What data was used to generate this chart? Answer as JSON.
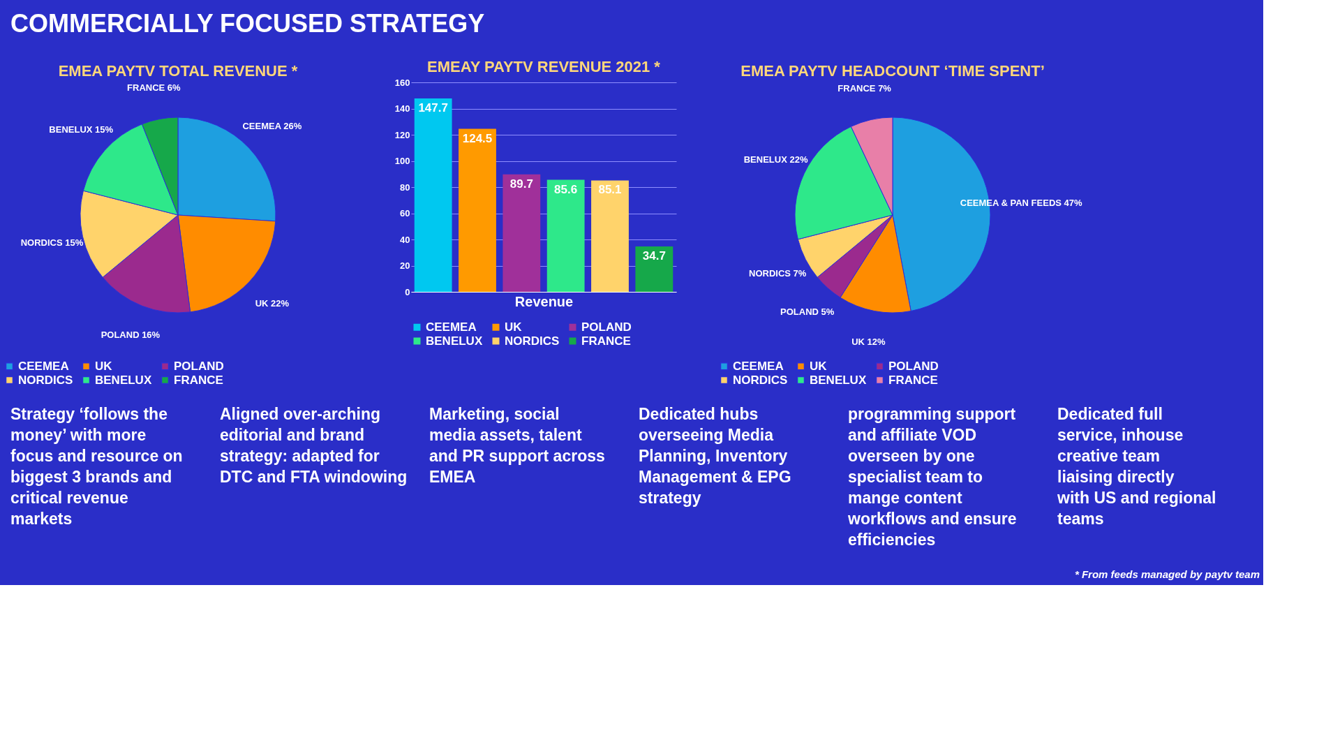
{
  "chart_data": [
    {
      "type": "other",
      "title": "COMMERCIALLY FOCUSED STRATEGY"
    },
    {
      "type": "pie",
      "title": "EMEA PAYTV TOTAL REVENUE *",
      "categories": [
        "CEEMEA",
        "UK",
        "POLAND",
        "NORDICS",
        "BENELUX",
        "FRANCE"
      ],
      "values": [
        26,
        22,
        16,
        15,
        15,
        6
      ],
      "colors": [
        "#1e9fe0",
        "#ff8c00",
        "#9b2a8e",
        "#ffd36b",
        "#2ee88a",
        "#16a84a"
      ],
      "value_labels": [
        "CEEMEA 26%",
        "UK 22%",
        "POLAND 16%",
        "NORDICS 15%",
        "BENELUX 15%",
        "FRANCE 6%"
      ],
      "legend": "bottom"
    },
    {
      "type": "bar",
      "title": "EMEAY PAYTV REVENUE 2021 *",
      "xlabel": "Revenue",
      "categories": [
        null,
        null,
        null,
        null,
        null,
        null
      ],
      "series": [
        {
          "name": "CEEMEA",
          "color": "#00c8f0",
          "values": [
            147.7,
            null,
            null,
            null,
            null,
            null
          ]
        },
        {
          "name": "UK",
          "color": "#ff9a00",
          "values": [
            null,
            124.5,
            null,
            null,
            null,
            null
          ]
        },
        {
          "name": "POLAND",
          "color": "#a0309a",
          "values": [
            null,
            null,
            89.7,
            null,
            null,
            null
          ]
        },
        {
          "name": "BENELUX",
          "color": "#2ee88a",
          "values": [
            null,
            null,
            null,
            85.6,
            null,
            null
          ]
        },
        {
          "name": "NORDICS",
          "color": "#ffd36b",
          "values": [
            null,
            null,
            null,
            null,
            85.1,
            null
          ]
        },
        {
          "name": "FRANCE",
          "color": "#16a84a",
          "values": [
            null,
            null,
            null,
            null,
            null,
            34.7
          ]
        }
      ],
      "ylim": [
        0,
        160
      ],
      "yticks": [
        0,
        20,
        40,
        60,
        80,
        100,
        120,
        140,
        160
      ],
      "grid": "y",
      "data_labels": true,
      "legend": "bottom",
      "tick_labels": "y"
    },
    {
      "type": "pie",
      "title": "EMEA PAYTV HEADCOUNT ‘TIME SPENT’",
      "categories": [
        "CEEMEA",
        "UK",
        "POLAND",
        "NORDICS",
        "BENELUX",
        "FRANCE"
      ],
      "values": [
        47,
        12,
        5,
        7,
        22,
        7
      ],
      "colors": [
        "#1e9fe0",
        "#ff8c00",
        "#9b2a8e",
        "#ffd36b",
        "#2ee88a",
        "#e87fa8"
      ],
      "value_labels": [
        "CEEMEA & PAN FEEDS 47%",
        "UK 12%",
        "POLAND 5%",
        "NORDICS 7%",
        "BENELUX 22%",
        "FRANCE 7%"
      ],
      "legend": "bottom"
    },
    {
      "type": "other",
      "annotations": [
        "Strategy ‘follows the money’ with more focus and resource on biggest 3 brands and critical revenue markets",
        "Aligned over-arching editorial and brand strategy: adapted for DTC and FTA windowing",
        "Marketing, social media assets, talent and PR support across EMEA",
        "Dedicated hubs overseeing Media Planning, Inventory Management & EPG strategy",
        "programming support and affiliate VOD overseen by one specialist team to mange content workflows and ensure efficiencies",
        "Dedicated full service, inhouse creative team liaising directly with US and regional teams",
        "* From feeds managed by paytv team"
      ]
    }
  ]
}
